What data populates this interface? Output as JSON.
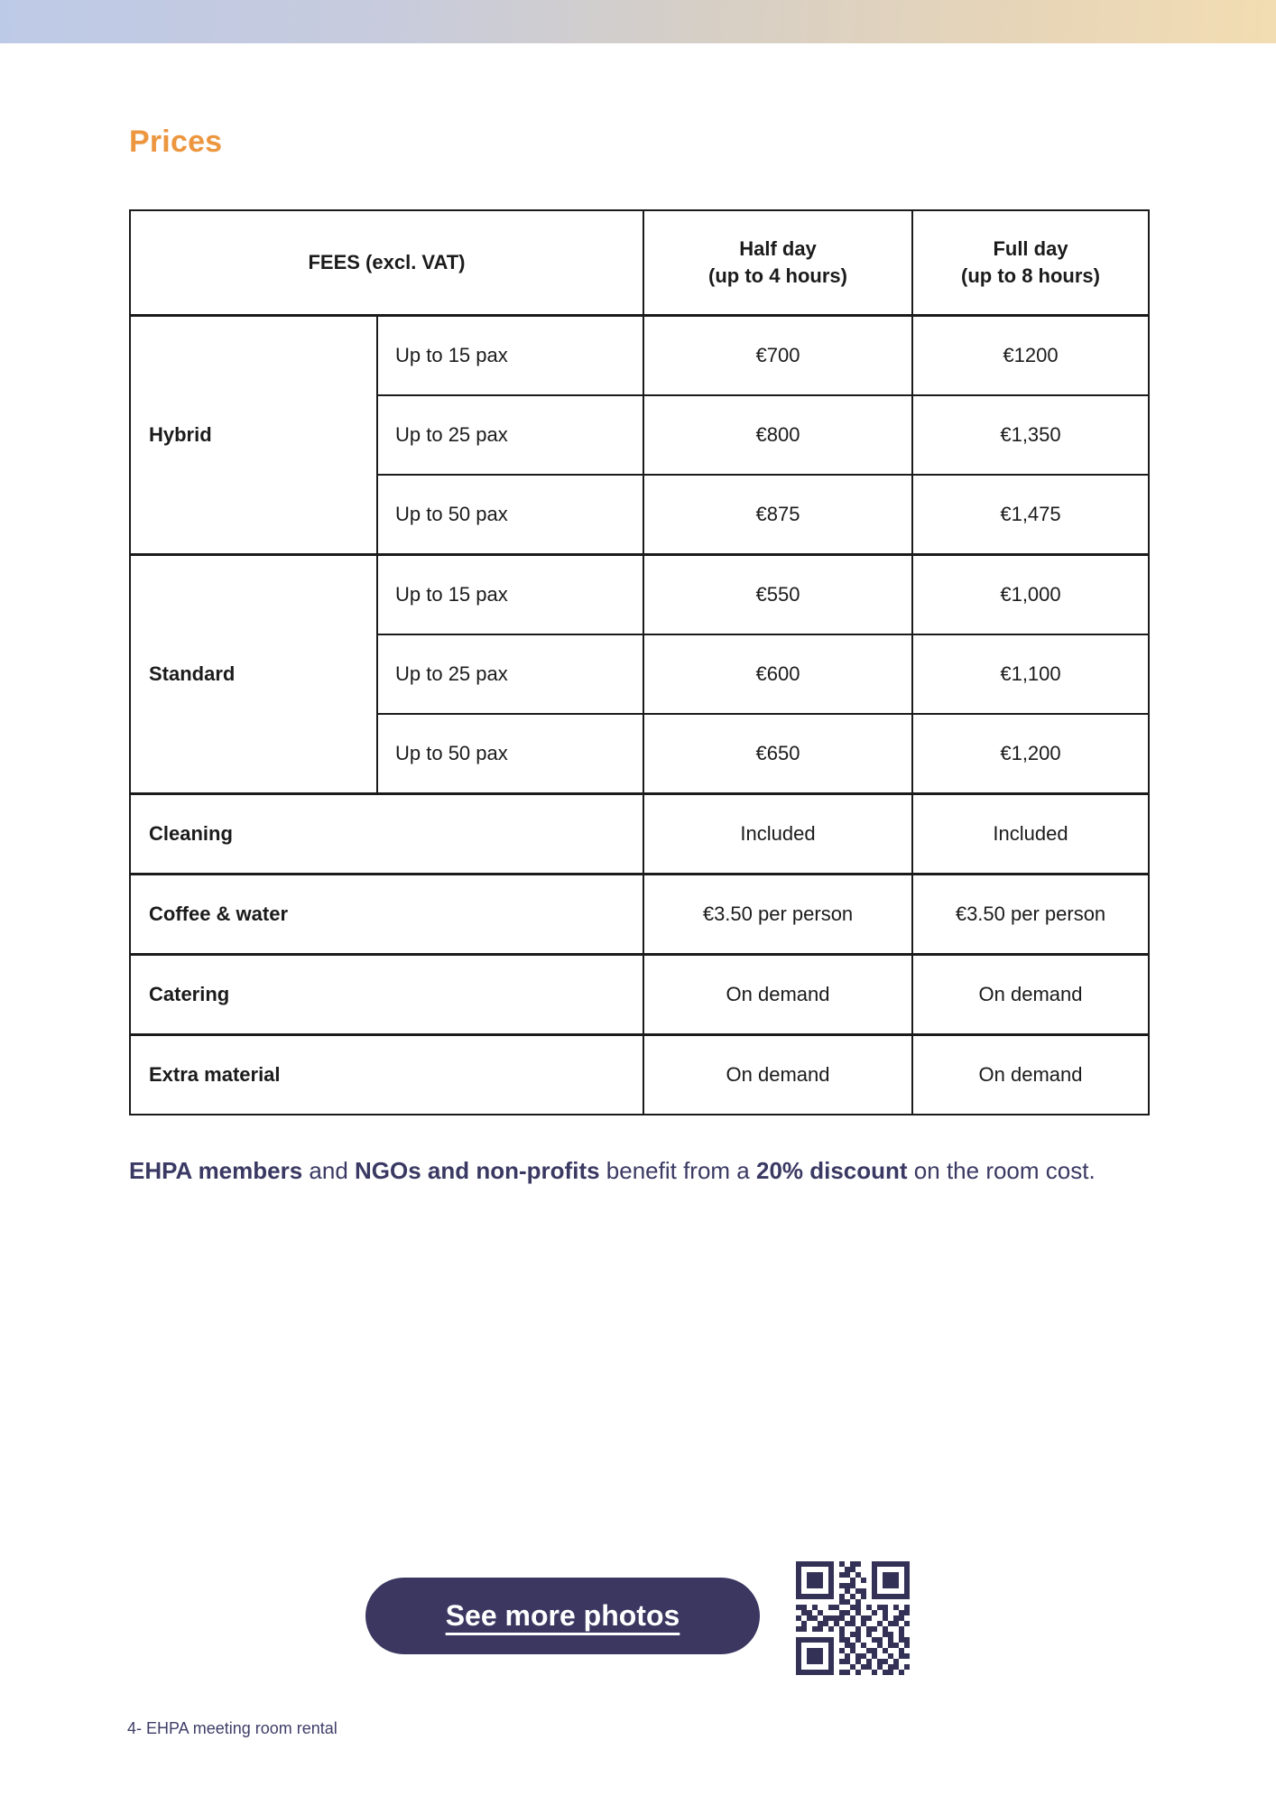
{
  "page": {
    "heading": "Prices",
    "footer": "4- EHPA meeting room rental"
  },
  "colors": {
    "accent_orange": "#EC9740",
    "body_navy": "#3A3963",
    "button_bg": "#3B3761",
    "qr_navy": "#343156",
    "table_border": "#1B1B1B",
    "topbar_gradient_left": "#BDCAE7",
    "topbar_gradient_right": "#F2DDB2"
  },
  "table": {
    "header": {
      "fees_label": "FEES (excl. VAT)",
      "half_day_line1": "Half day",
      "half_day_line2": "(up to 4 hours)",
      "full_day_line1": "Full day",
      "full_day_line2": "(up to 8 hours)"
    },
    "groups": [
      {
        "name": "Hybrid",
        "rows": [
          {
            "label": "Up to 15 pax",
            "half": "€700",
            "full": "€1200"
          },
          {
            "label": "Up to 25 pax",
            "half": "€800",
            "full": "€1,350"
          },
          {
            "label": "Up to 50 pax",
            "half": "€875",
            "full": "€1,475"
          }
        ]
      },
      {
        "name": "Standard",
        "rows": [
          {
            "label": "Up to 15 pax",
            "half": "€550",
            "full": "€1,000"
          },
          {
            "label": "Up to 25 pax",
            "half": "€600",
            "full": "€1,100"
          },
          {
            "label": "Up to 50 pax",
            "half": "€650",
            "full": "€1,200"
          }
        ]
      }
    ],
    "simple_rows": [
      {
        "label": "Cleaning",
        "half": "Included",
        "full": "Included"
      },
      {
        "label": "Coffee & water",
        "half": "€3.50 per person",
        "full": "€3.50 per person"
      },
      {
        "label": "Catering",
        "half": "On demand",
        "full": "On demand"
      },
      {
        "label": "Extra material",
        "half": "On demand",
        "full": "On demand"
      }
    ]
  },
  "note": {
    "segments": [
      {
        "text": "EHPA members",
        "bold": true
      },
      {
        "text": " and ",
        "bold": false
      },
      {
        "text": "NGOs and non-profits",
        "bold": true
      },
      {
        "text": " benefit from a ",
        "bold": false
      },
      {
        "text": "20% discount",
        "bold": true
      },
      {
        "text": " on the room cost.",
        "bold": false
      }
    ]
  },
  "cta": {
    "button_label": "See more photos"
  },
  "qr": {
    "modules": [
      "111111101011001111111",
      "100000100110001000001",
      "101110101101001011101",
      "101110100010101011101",
      "101110101110001011101",
      "100000100101101000001",
      "111111101010101111111",
      "000000001101000000000",
      "110100110011010110101",
      "011010001101001010011",
      "101101111010110010110",
      "010011010110100101101",
      "110110101001011010010",
      "000000001011010011010",
      "111111101101001101011",
      "100000100110100101101",
      "101110101010011010010",
      "101110100101101001011",
      "101110101101010110100",
      "100000100010110101101",
      "111111101101001011010"
    ]
  }
}
